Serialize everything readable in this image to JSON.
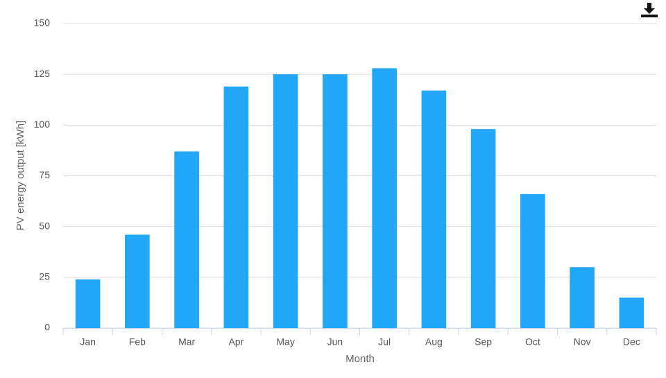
{
  "chart_data": {
    "type": "bar",
    "x_label": "Month",
    "y_label": "PV energy output [kWh]",
    "categories": [
      "Jan",
      "Feb",
      "Mar",
      "Apr",
      "May",
      "Jun",
      "Jul",
      "Aug",
      "Sep",
      "Oct",
      "Nov",
      "Dec"
    ],
    "values": [
      24,
      46,
      87,
      119,
      125,
      125,
      128,
      117,
      98,
      66,
      30,
      15
    ],
    "color": "#22a7f8",
    "ylim": [
      0,
      150
    ],
    "yticks": [
      0,
      25,
      50,
      75,
      100,
      125,
      150
    ],
    "grid": true
  }
}
